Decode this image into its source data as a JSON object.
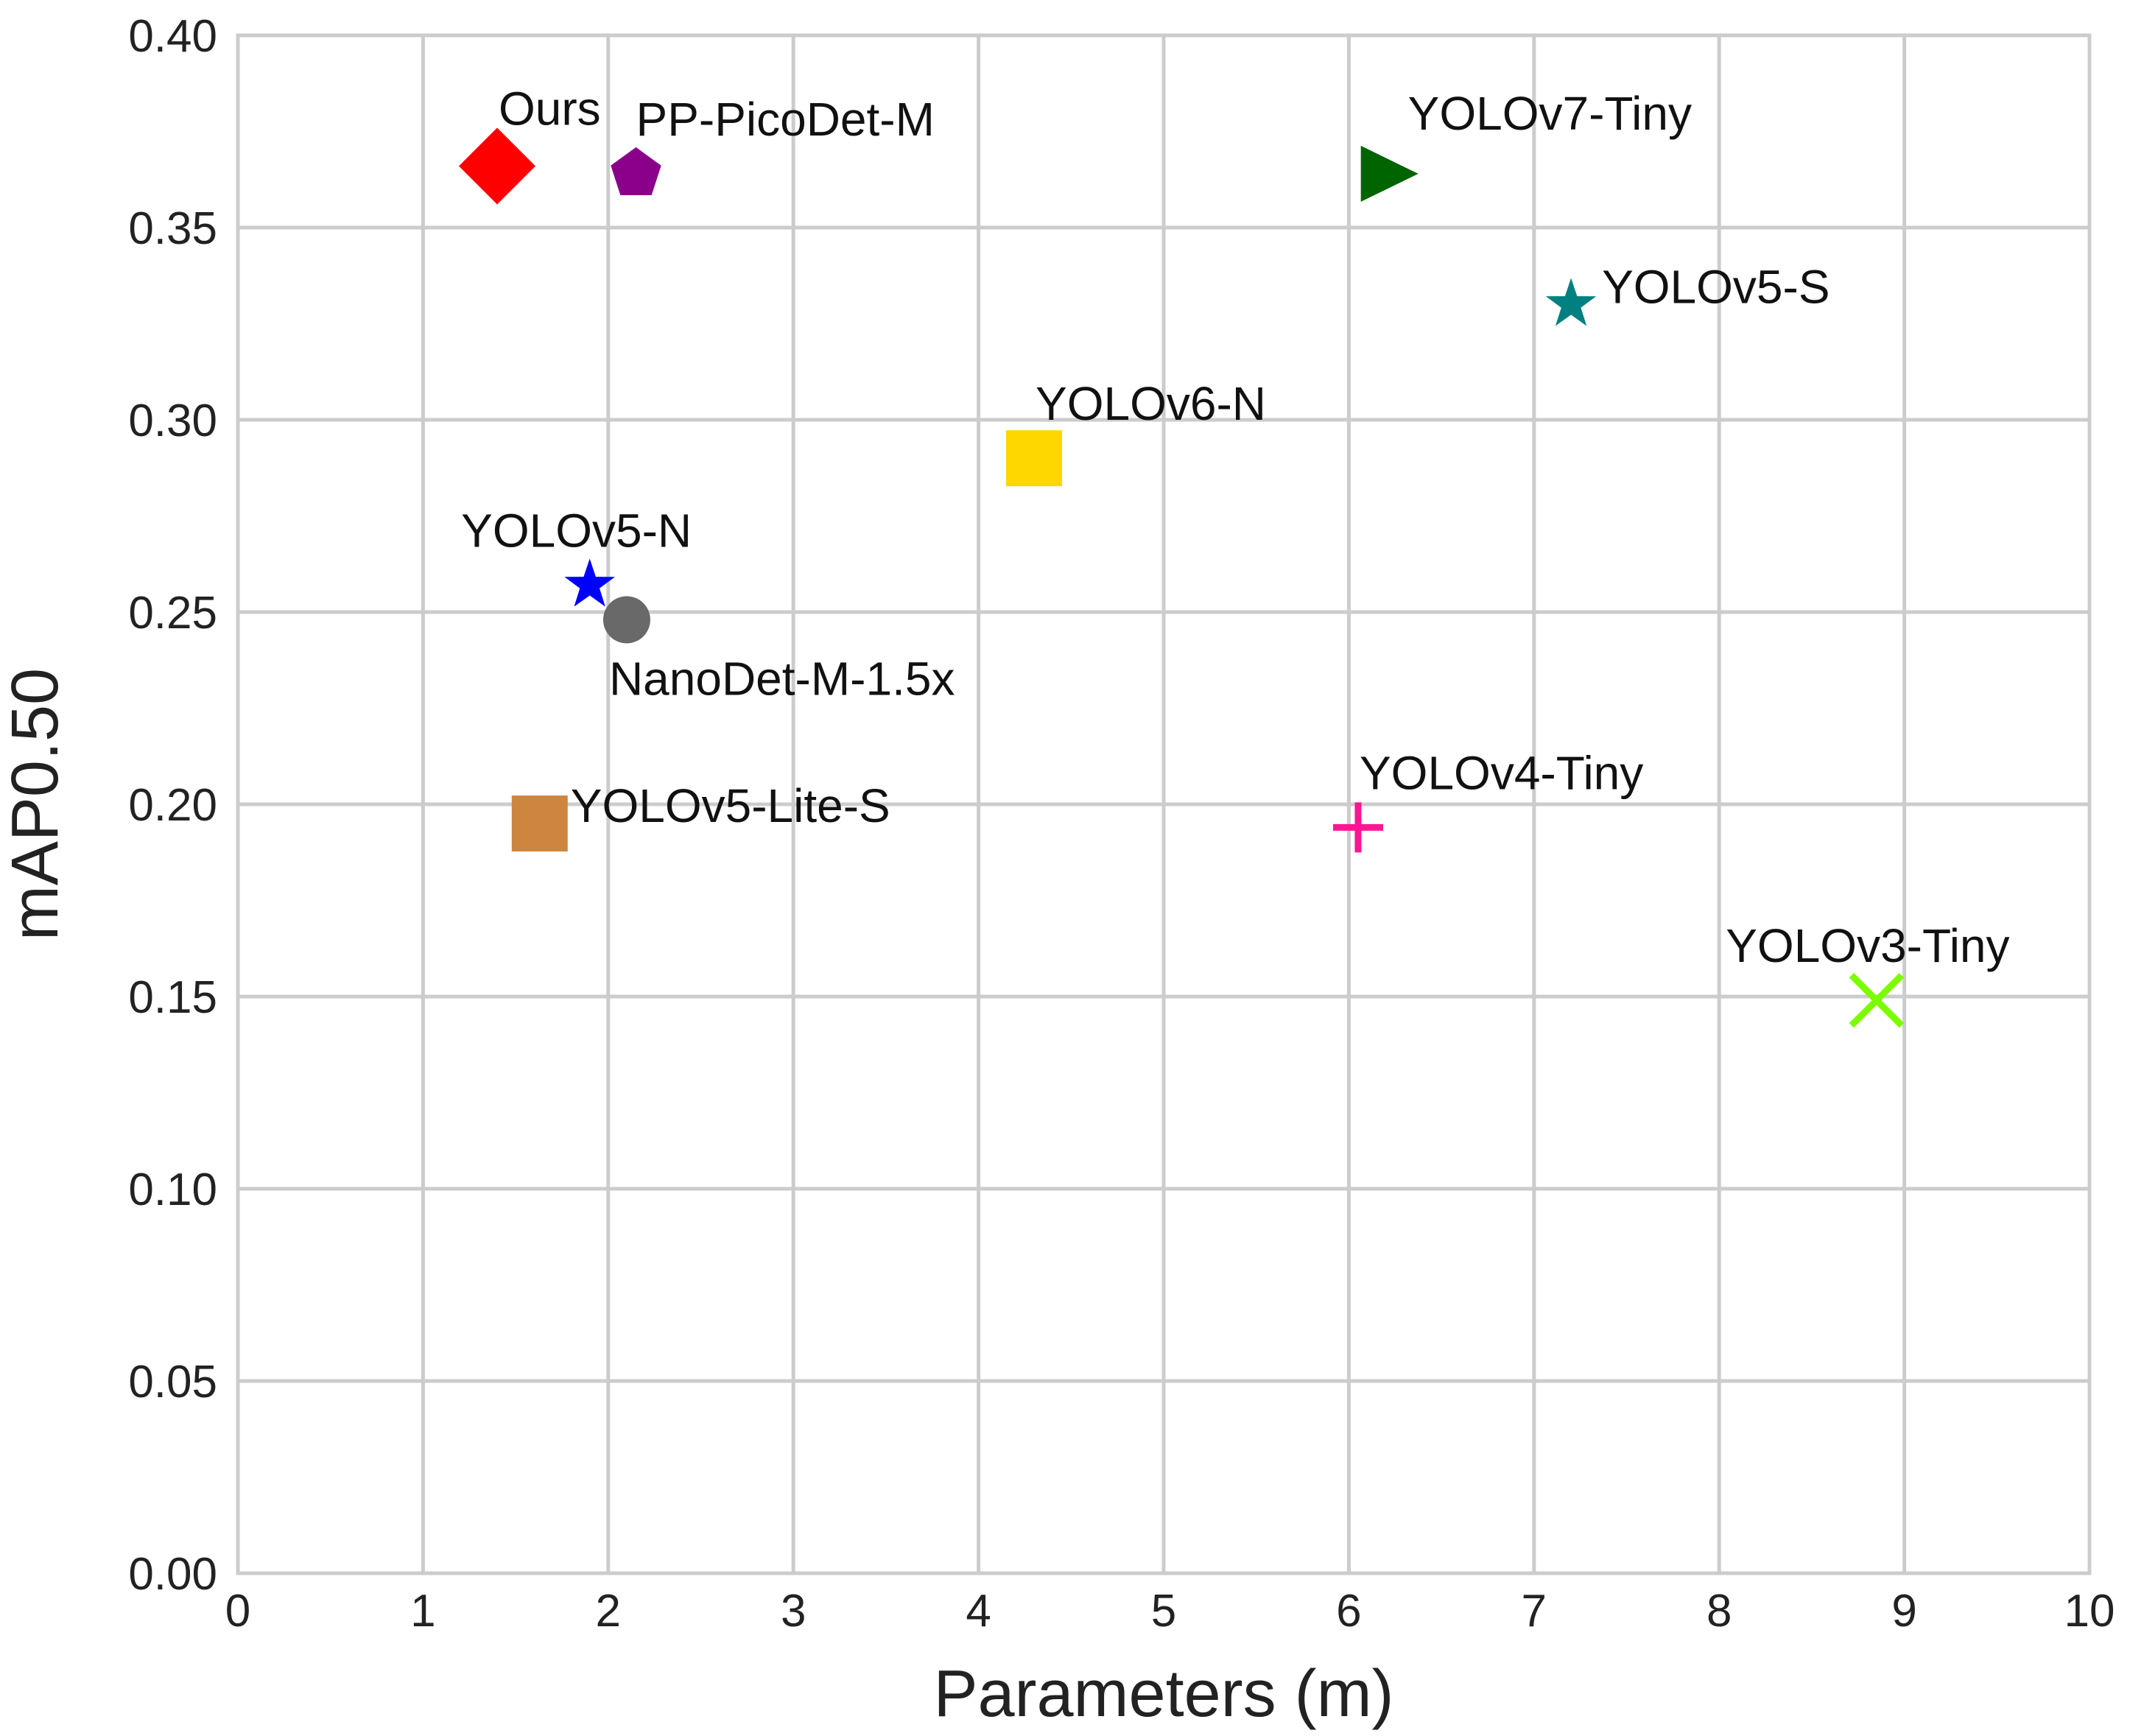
{
  "chart_data": {
    "type": "scatter",
    "title": "",
    "xlabel": "Parameters (m)",
    "ylabel": "mAP0.50",
    "xlim": [
      0,
      10
    ],
    "ylim": [
      0,
      0.4
    ],
    "xticks": [
      "0",
      "1",
      "2",
      "3",
      "4",
      "5",
      "6",
      "7",
      "8",
      "9",
      "10"
    ],
    "yticks": [
      "0.00",
      "0.05",
      "0.10",
      "0.15",
      "0.20",
      "0.25",
      "0.30",
      "0.35",
      "0.40"
    ],
    "grid": true,
    "points": [
      {
        "label": "Ours",
        "x": 1.4,
        "y": 0.366,
        "marker": "diamond",
        "color": "#ff0000",
        "label_pos": "above-right"
      },
      {
        "label": "PP-PicoDet-M",
        "x": 2.15,
        "y": 0.364,
        "marker": "pentagon",
        "color": "#8b008b",
        "label_pos": "above-right"
      },
      {
        "label": "YOLOv7-Tiny",
        "x": 6.2,
        "y": 0.364,
        "marker": "triangle-right",
        "color": "#006400",
        "label_pos": "above-right"
      },
      {
        "label": "YOLOv5-S",
        "x": 7.2,
        "y": 0.33,
        "marker": "star",
        "color": "#008080",
        "label_pos": "right"
      },
      {
        "label": "YOLOv6-N",
        "x": 4.3,
        "y": 0.29,
        "marker": "square",
        "color": "#ffd700",
        "label_pos": "above-right"
      },
      {
        "label": "YOLOv5-N",
        "x": 1.9,
        "y": 0.257,
        "marker": "star",
        "color": "#0000ff",
        "label_pos": "above"
      },
      {
        "label": "NanoDet-M-1.5x",
        "x": 2.1,
        "y": 0.248,
        "marker": "circle",
        "color": "#696969",
        "label_pos": "below-right"
      },
      {
        "label": "YOLOv5-Lite-S",
        "x": 1.63,
        "y": 0.195,
        "marker": "square",
        "color": "#cd853f",
        "label_pos": "right"
      },
      {
        "label": "YOLOv4-Tiny",
        "x": 6.05,
        "y": 0.194,
        "marker": "plus",
        "color": "#ff1493",
        "label_pos": "above-right"
      },
      {
        "label": "YOLOv3-Tiny",
        "x": 8.85,
        "y": 0.149,
        "marker": "x",
        "color": "#7cfc00",
        "label_pos": "above-left"
      }
    ]
  }
}
